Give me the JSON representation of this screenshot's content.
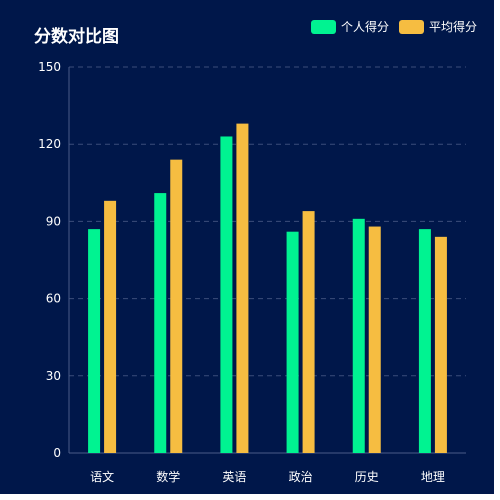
{
  "title": "分数对比图",
  "colors": {
    "background": "#00174a",
    "grid": "#3b4d7a",
    "axis": "#4a5b88",
    "text": "#ffffff"
  },
  "legend": {
    "items": [
      {
        "label": "个人得分",
        "color": "#00f391"
      },
      {
        "label": "平均得分",
        "color": "#f6bd41"
      }
    ]
  },
  "chart_data": {
    "type": "bar",
    "title": "分数对比图",
    "xlabel": "",
    "ylabel": "",
    "categories": [
      "语文",
      "数学",
      "英语",
      "政治",
      "历史",
      "地理"
    ],
    "series": [
      {
        "name": "个人得分",
        "color": "#00f391",
        "values": [
          87,
          101,
          123,
          86,
          91,
          87
        ]
      },
      {
        "name": "平均得分",
        "color": "#f6bd41",
        "values": [
          98,
          114,
          128,
          94,
          88,
          84
        ]
      }
    ],
    "ylim": [
      0,
      150
    ],
    "yticks": [
      0,
      30,
      60,
      90,
      120,
      150
    ],
    "grid": true,
    "grid_style": "dashed",
    "legend_position": "top-right"
  }
}
